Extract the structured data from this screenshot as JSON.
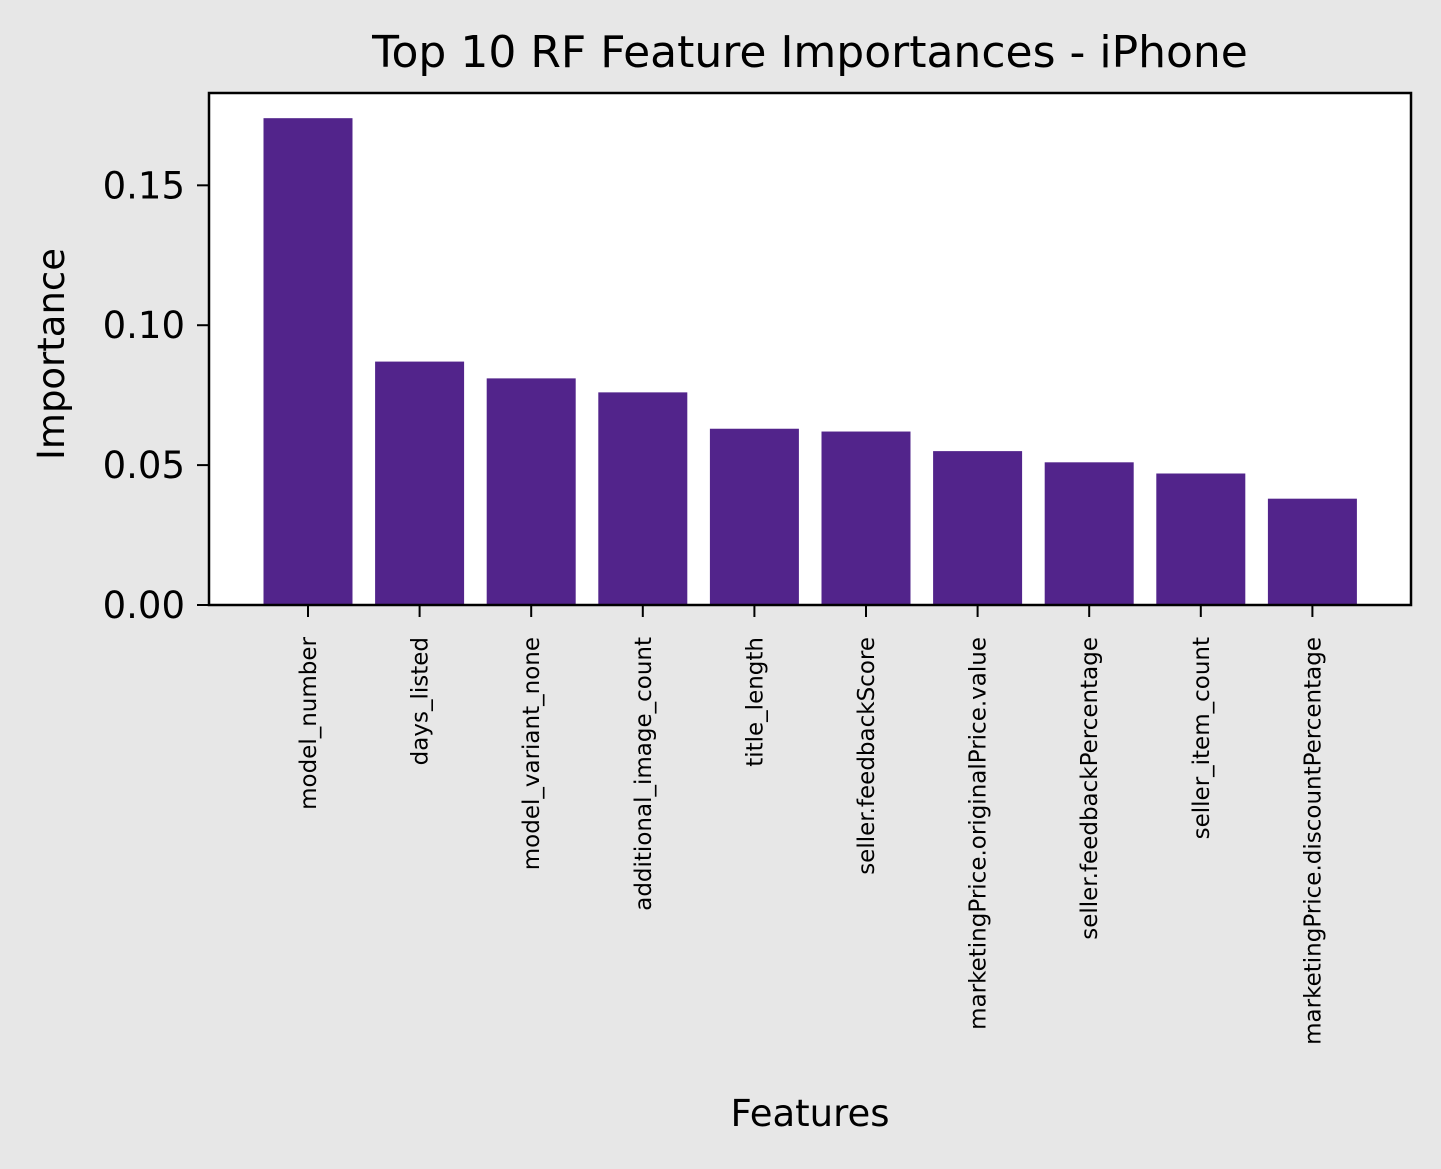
{
  "colors": {
    "background": "#e7e7e7",
    "plot_background": "#ffffff",
    "bar": "#52248b",
    "axis": "#000000"
  },
  "chart_data": {
    "type": "bar",
    "title": "Top 10 RF Feature Importances - iPhone",
    "xlabel": "Features",
    "ylabel": "Importance",
    "categories": [
      "model_number",
      "days_listed",
      "model_variant_none",
      "additional_image_count",
      "title_length",
      "seller.feedbackScore",
      "marketingPrice.originalPrice.value",
      "seller.feedbackPercentage",
      "seller_item_count",
      "marketingPrice.discountPercentage"
    ],
    "values": [
      0.174,
      0.087,
      0.081,
      0.076,
      0.063,
      0.062,
      0.055,
      0.051,
      0.047,
      0.038
    ],
    "ylim": [
      0,
      0.183
    ],
    "yticks": [
      0.0,
      0.05,
      0.1,
      0.15
    ],
    "ytick_labels": [
      "0.00",
      "0.05",
      "0.10",
      "0.15"
    ],
    "grid": false,
    "legend": "none"
  }
}
